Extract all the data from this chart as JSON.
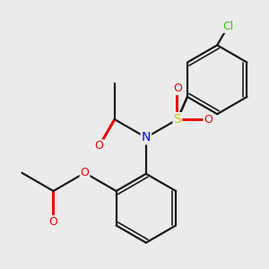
{
  "background_color": "#ebebeb",
  "bond_color": "#1a1a1a",
  "atom_colors": {
    "N": "#0000ee",
    "O": "#ee0000",
    "S": "#cccc00",
    "Cl": "#33cc00",
    "C": "#1a1a1a"
  },
  "figsize": [
    3.0,
    3.0
  ],
  "dpi": 100
}
